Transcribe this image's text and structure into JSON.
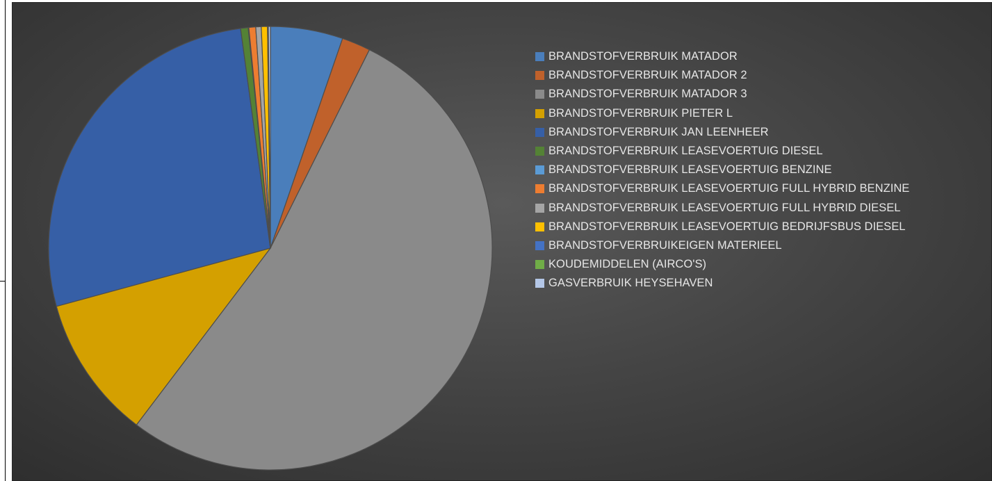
{
  "chart_data": {
    "type": "pie",
    "title": "",
    "legend_position": "right",
    "series": [
      {
        "name": "BRANDSTOFVERBRUIK MATADOR",
        "value": 5.3,
        "color": "#4a7ebb"
      },
      {
        "name": "BRANDSTOFVERBRUIK MATADOR 2",
        "value": 2.1,
        "color": "#c0612b"
      },
      {
        "name": "BRANDSTOFVERBRUIK MATADOR 3",
        "value": 53.2,
        "color": "#8a8a8a"
      },
      {
        "name": "BRANDSTOFVERBRUIK PIETER L",
        "value": 10.5,
        "color": "#d4a000"
      },
      {
        "name": "BRANDSTOFVERBRUIK JAN LEENHEER",
        "value": 27.2,
        "color": "#365fa6"
      },
      {
        "name": "BRANDSTOFVERBRUIK LEASEVOERTUIG DIESEL",
        "value": 0.55,
        "color": "#548235"
      },
      {
        "name": "BRANDSTOFVERBRUIK LEASEVOERTUIG BENZINE",
        "value": 0.05,
        "color": "#5b9bd5"
      },
      {
        "name": "BRANDSTOFVERBRUIK LEASEVOERTUIG FULL HYBRID BENZINE",
        "value": 0.5,
        "color": "#ed7d31"
      },
      {
        "name": "BRANDSTOFVERBRUIK LEASEVOERTUIG FULL HYBRID DIESEL",
        "value": 0.4,
        "color": "#a5a5a5"
      },
      {
        "name": "BRANDSTOFVERBRUIK LEASEVOERTUIG BEDRIJFSBUS DIESEL",
        "value": 0.45,
        "color": "#ffc000"
      },
      {
        "name": "BRANDSTOFVERBRUIKEIGEN MATERIEEL",
        "value": 0.03,
        "color": "#4472c4"
      },
      {
        "name": "KOUDEMIDDELEN (AIRCO'S)",
        "value": 0.03,
        "color": "#70ad47"
      },
      {
        "name": "GASVERBRUIK HEYSEHAVEN",
        "value": 0.15,
        "color": "#b4c7e7"
      }
    ]
  }
}
